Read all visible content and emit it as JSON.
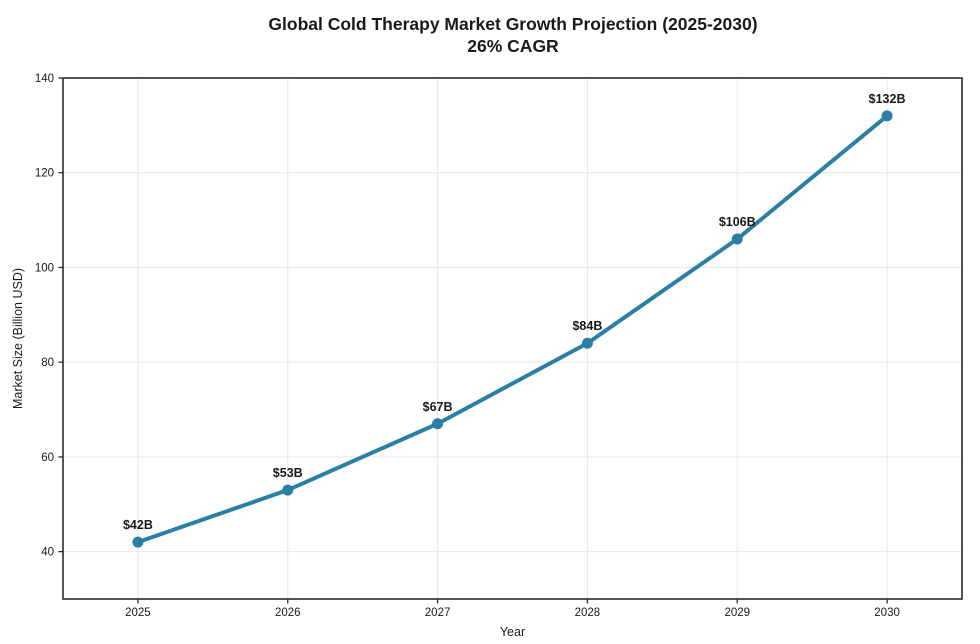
{
  "title": "Global Cold Therapy Market Growth Projection (2025-2030)",
  "subtitle": "26% CAGR",
  "chart_data": {
    "type": "line",
    "title": "Global Cold Therapy Market Growth Projection (2025-2030)",
    "subtitle": "26% CAGR",
    "xlabel": "Year",
    "ylabel": "Market Size (Billion USD)",
    "x": [
      2025,
      2026,
      2027,
      2028,
      2029,
      2030
    ],
    "values": [
      42,
      53,
      67,
      84,
      106,
      132
    ],
    "point_labels": [
      "$42B",
      "$53B",
      "$67B",
      "$84B",
      "$106B",
      "$132B"
    ],
    "xticks": [
      2025,
      2026,
      2027,
      2028,
      2029,
      2030
    ],
    "yticks": [
      40,
      60,
      80,
      100,
      120,
      140
    ],
    "xlim": [
      2024.5,
      2030.5
    ],
    "ylim": [
      30,
      140
    ],
    "grid": true,
    "legend": "none",
    "line_color": "#2b7fa5",
    "marker_color": "#2b7fa5",
    "grid_color": "#e8e8e8",
    "axis_color": "#2b2b2b",
    "text_color": "#1a1a1a"
  }
}
